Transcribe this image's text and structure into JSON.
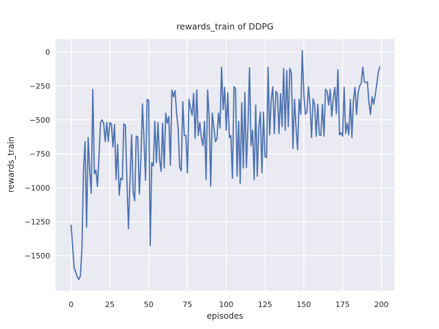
{
  "chart_data": {
    "type": "line",
    "title": "rewards_train of DDPG",
    "xlabel": "episodes",
    "ylabel": "rewards_train",
    "grid": true,
    "legend": "none",
    "xlim": [
      -10,
      208.4
    ],
    "ylim": [
      -1757,
      95
    ],
    "xticks": [
      0,
      25,
      50,
      75,
      100,
      125,
      150,
      175,
      200
    ],
    "xtick_labels": [
      "0",
      "25",
      "50",
      "75",
      "100",
      "125",
      "150",
      "175",
      "200"
    ],
    "yticks": [
      0,
      -250,
      -500,
      -750,
      -1000,
      -1250,
      -1500
    ],
    "ytick_labels": [
      "0",
      "−250",
      "−500",
      "−750",
      "−1000",
      "−1250",
      "−1500"
    ],
    "style": {
      "figure_bg": "#ffffff",
      "axes_bg": "#eaeaf2",
      "grid_color": "#ffffff",
      "line_color": "#4c72b0",
      "text_color": "#262626",
      "line_width": 1.8
    },
    "series": [
      {
        "name": "rewards_train",
        "color": "#4c72b0",
        "x_start": 0,
        "x_step": 1,
        "values": [
          -1275,
          -1430,
          -1590,
          -1620,
          -1655,
          -1675,
          -1650,
          -1450,
          -880,
          -660,
          -1290,
          -630,
          -870,
          -1040,
          -275,
          -897,
          -870,
          -990,
          -770,
          -518,
          -500,
          -525,
          -660,
          -518,
          -660,
          -520,
          -530,
          -700,
          -535,
          -940,
          -680,
          -1055,
          -930,
          -940,
          -530,
          -540,
          -950,
          -1300,
          -940,
          -610,
          -1030,
          -1095,
          -620,
          -625,
          -1045,
          -790,
          -382,
          -650,
          -945,
          -350,
          -355,
          -1425,
          -815,
          -840,
          -510,
          -815,
          -520,
          -790,
          -880,
          -525,
          -855,
          -450,
          -525,
          -475,
          -835,
          -280,
          -330,
          -285,
          -450,
          -560,
          -850,
          -875,
          -365,
          -615,
          -615,
          -890,
          -350,
          -415,
          -465,
          -305,
          -635,
          -280,
          -615,
          -520,
          -635,
          -690,
          -510,
          -940,
          -280,
          -475,
          -988,
          -450,
          -550,
          -660,
          -640,
          -450,
          -560,
          -113,
          -425,
          -260,
          -576,
          -300,
          -630,
          -615,
          -930,
          -255,
          -270,
          -915,
          -510,
          -970,
          -374,
          -855,
          -300,
          -850,
          -545,
          -115,
          -690,
          -575,
          -940,
          -390,
          -915,
          -555,
          -442,
          -889,
          -442,
          -771,
          -777,
          -113,
          -610,
          -349,
          -256,
          -600,
          -290,
          -307,
          -600,
          -307,
          -550,
          -121,
          -576,
          -138,
          -550,
          -121,
          -155,
          -710,
          -349,
          -560,
          -720,
          -349,
          -459,
          10,
          -307,
          -459,
          -442,
          -256,
          -390,
          -630,
          -345,
          -390,
          -620,
          -385,
          -610,
          -615,
          -385,
          -620,
          -275,
          -290,
          -390,
          -275,
          -475,
          -345,
          -260,
          -455,
          -130,
          -610,
          -595,
          -620,
          -260,
          -600,
          -525,
          -610,
          -350,
          -630,
          -350,
          -260,
          -460,
          -300,
          -250,
          -230,
          -113,
          -220,
          -225,
          -220,
          -375,
          -460,
          -330,
          -385,
          -320,
          -240,
          -150,
          -110
        ]
      }
    ]
  }
}
